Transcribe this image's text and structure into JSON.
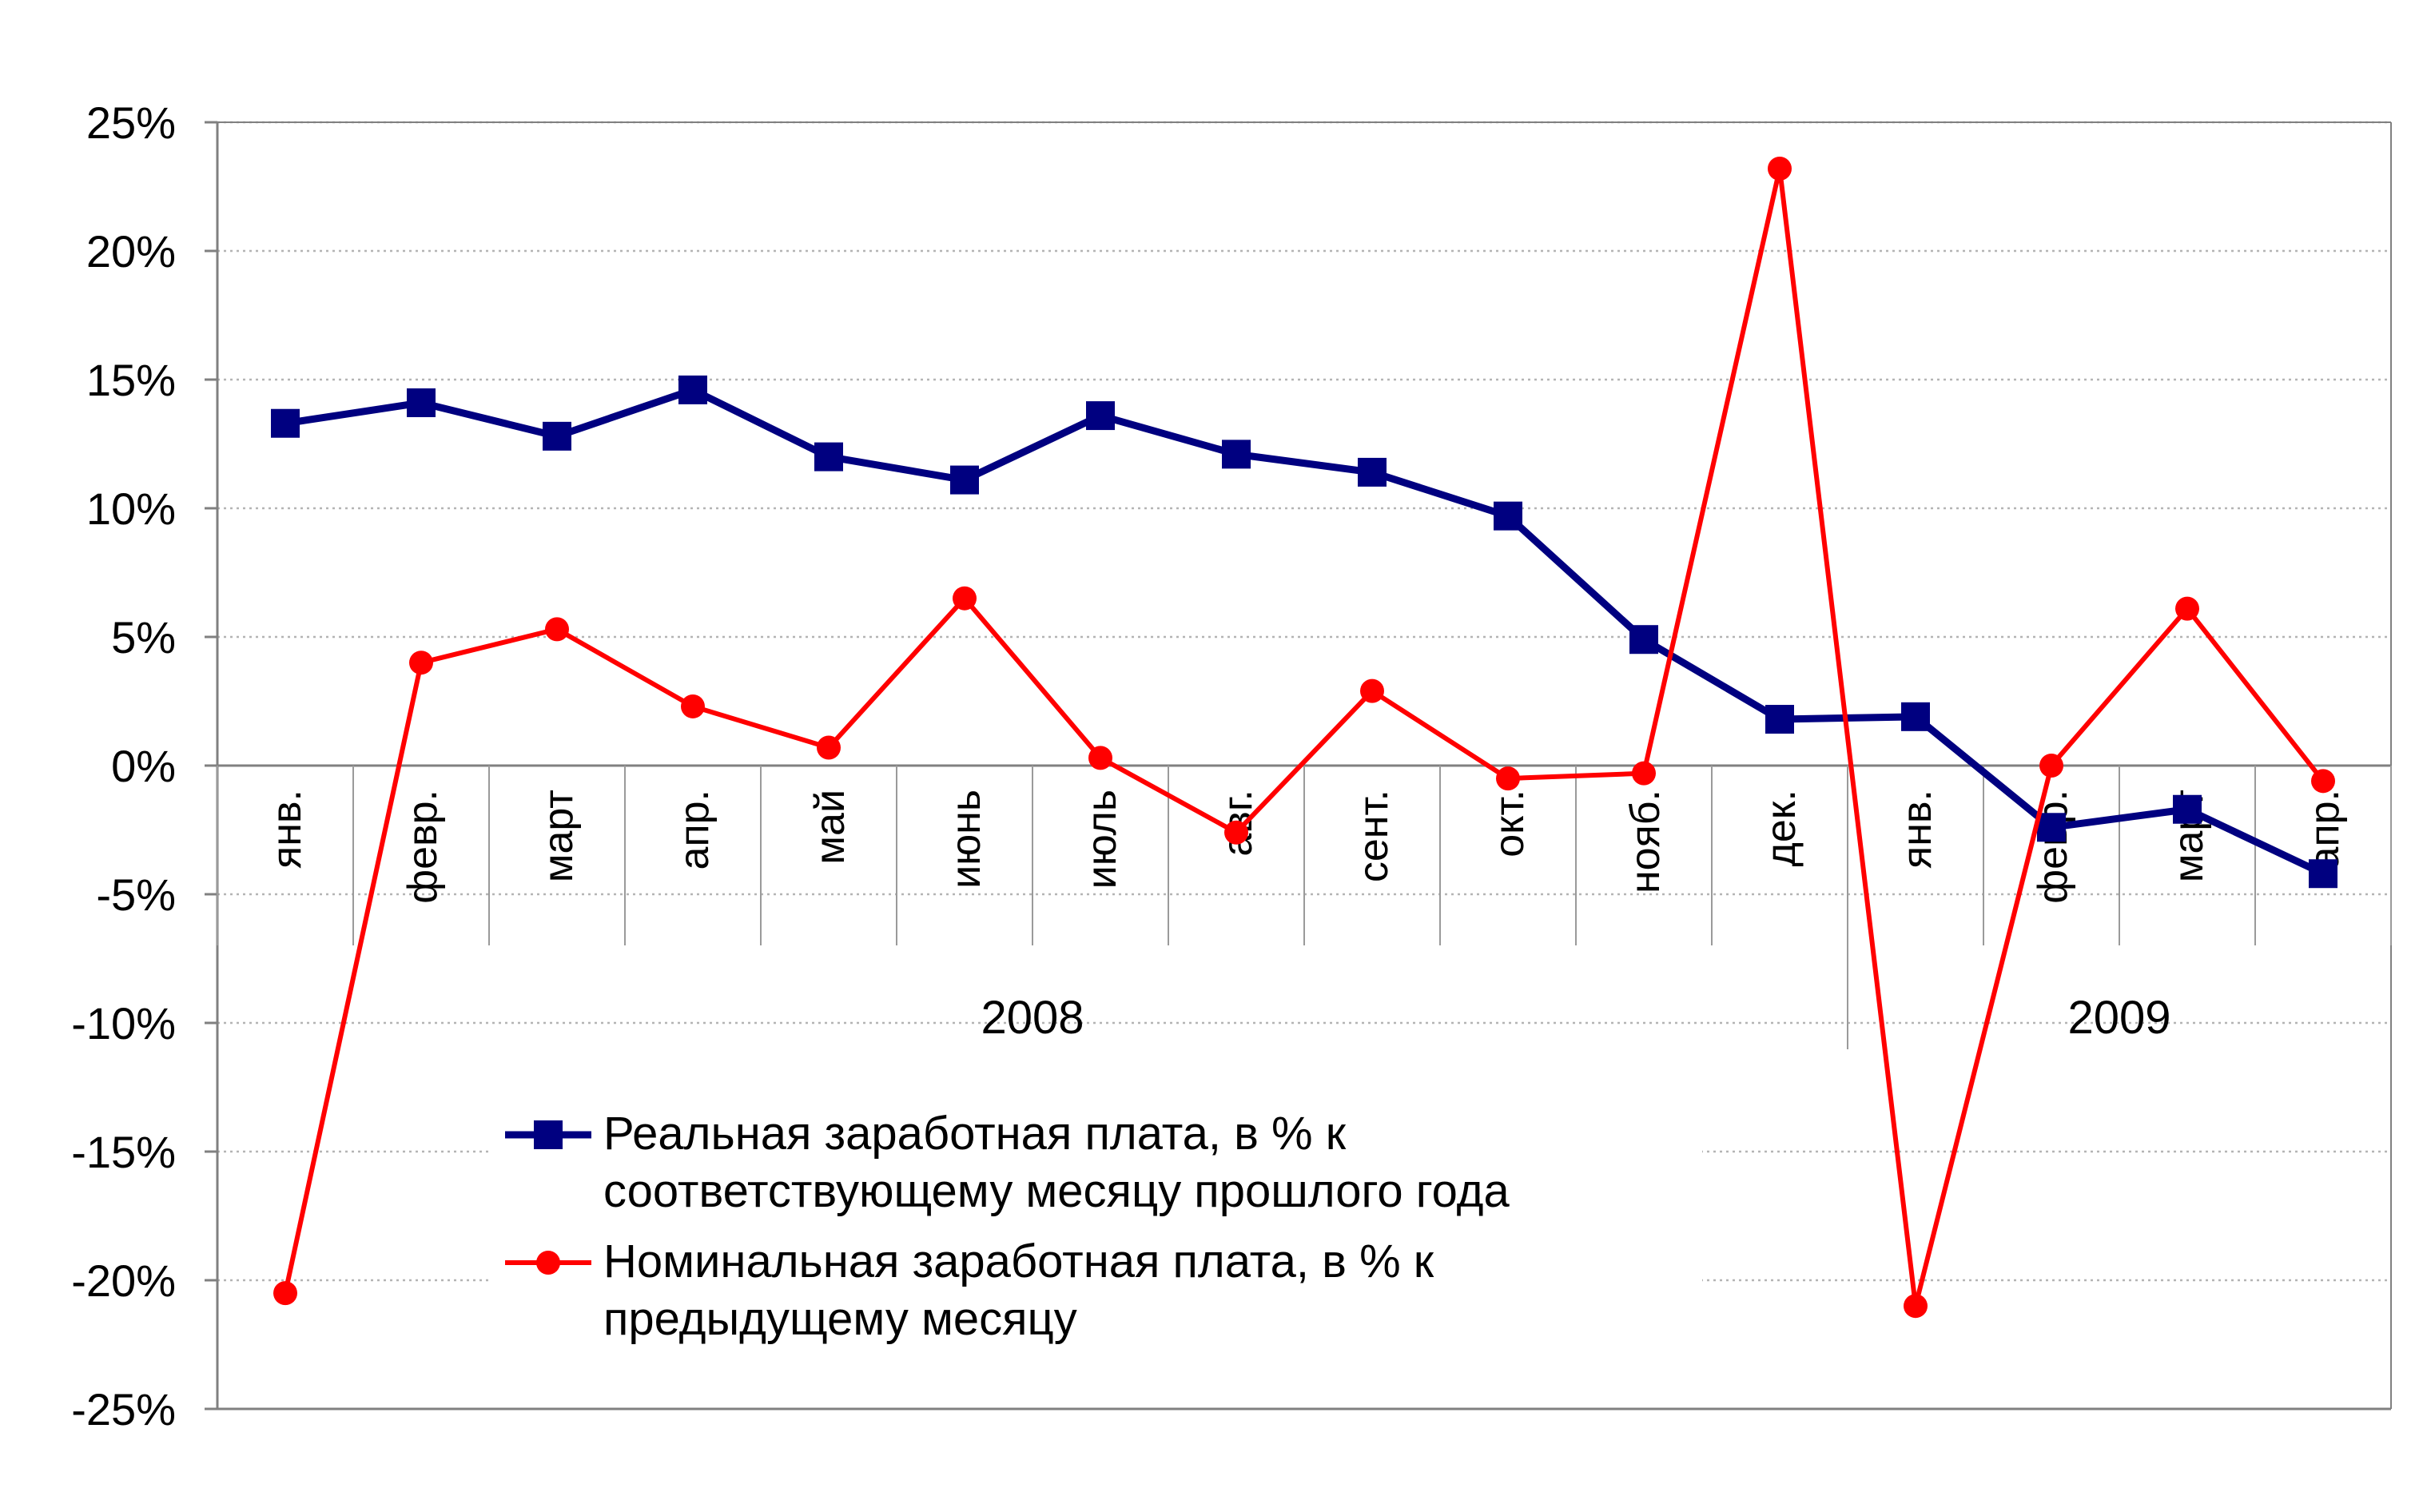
{
  "chart_data": {
    "type": "line",
    "title": "",
    "xlabel": "",
    "ylabel": "",
    "categories": [
      "янв.",
      "февр.",
      "март",
      "апр.",
      "май",
      "июнь",
      "июль",
      "авг.",
      "сент.",
      "окт.",
      "нояб.",
      "дек.",
      "янв.",
      "февр.",
      "март",
      "апр."
    ],
    "years": [
      {
        "label": "2008",
        "start": 0,
        "end": 11
      },
      {
        "label": "2009",
        "start": 12,
        "end": 15
      }
    ],
    "ylim": [
      -25,
      25
    ],
    "yticks": [
      25,
      20,
      15,
      10,
      5,
      0,
      -5,
      -10,
      -15,
      -20,
      -25
    ],
    "ytick_labels": [
      "25%",
      "20%",
      "15%",
      "10%",
      "5%",
      "0%",
      "-5%",
      "-10%",
      "-15%",
      "-20%",
      "-25%"
    ],
    "grid": true,
    "legend_position": "bottom-center",
    "series": [
      {
        "name_lines": [
          "Реальная заработная плата, в % к",
          "соответствующему месяцу прошлого года"
        ],
        "color": "#000080",
        "marker": "square",
        "values": [
          13.3,
          14.1,
          12.8,
          14.6,
          12.0,
          11.1,
          13.6,
          12.1,
          11.4,
          9.7,
          4.9,
          1.8,
          1.9,
          -2.4,
          -1.7,
          -4.2
        ]
      },
      {
        "name_lines": [
          "Номинальная заработная плата, в % к",
          "предыдущему месяцу"
        ],
        "color": "#ff0000",
        "marker": "circle",
        "values": [
          -20.5,
          4.0,
          5.3,
          2.3,
          0.7,
          6.5,
          0.3,
          -2.6,
          2.9,
          -0.5,
          -0.3,
          23.2,
          -21.0,
          0.0,
          6.1,
          -0.6
        ]
      }
    ]
  }
}
